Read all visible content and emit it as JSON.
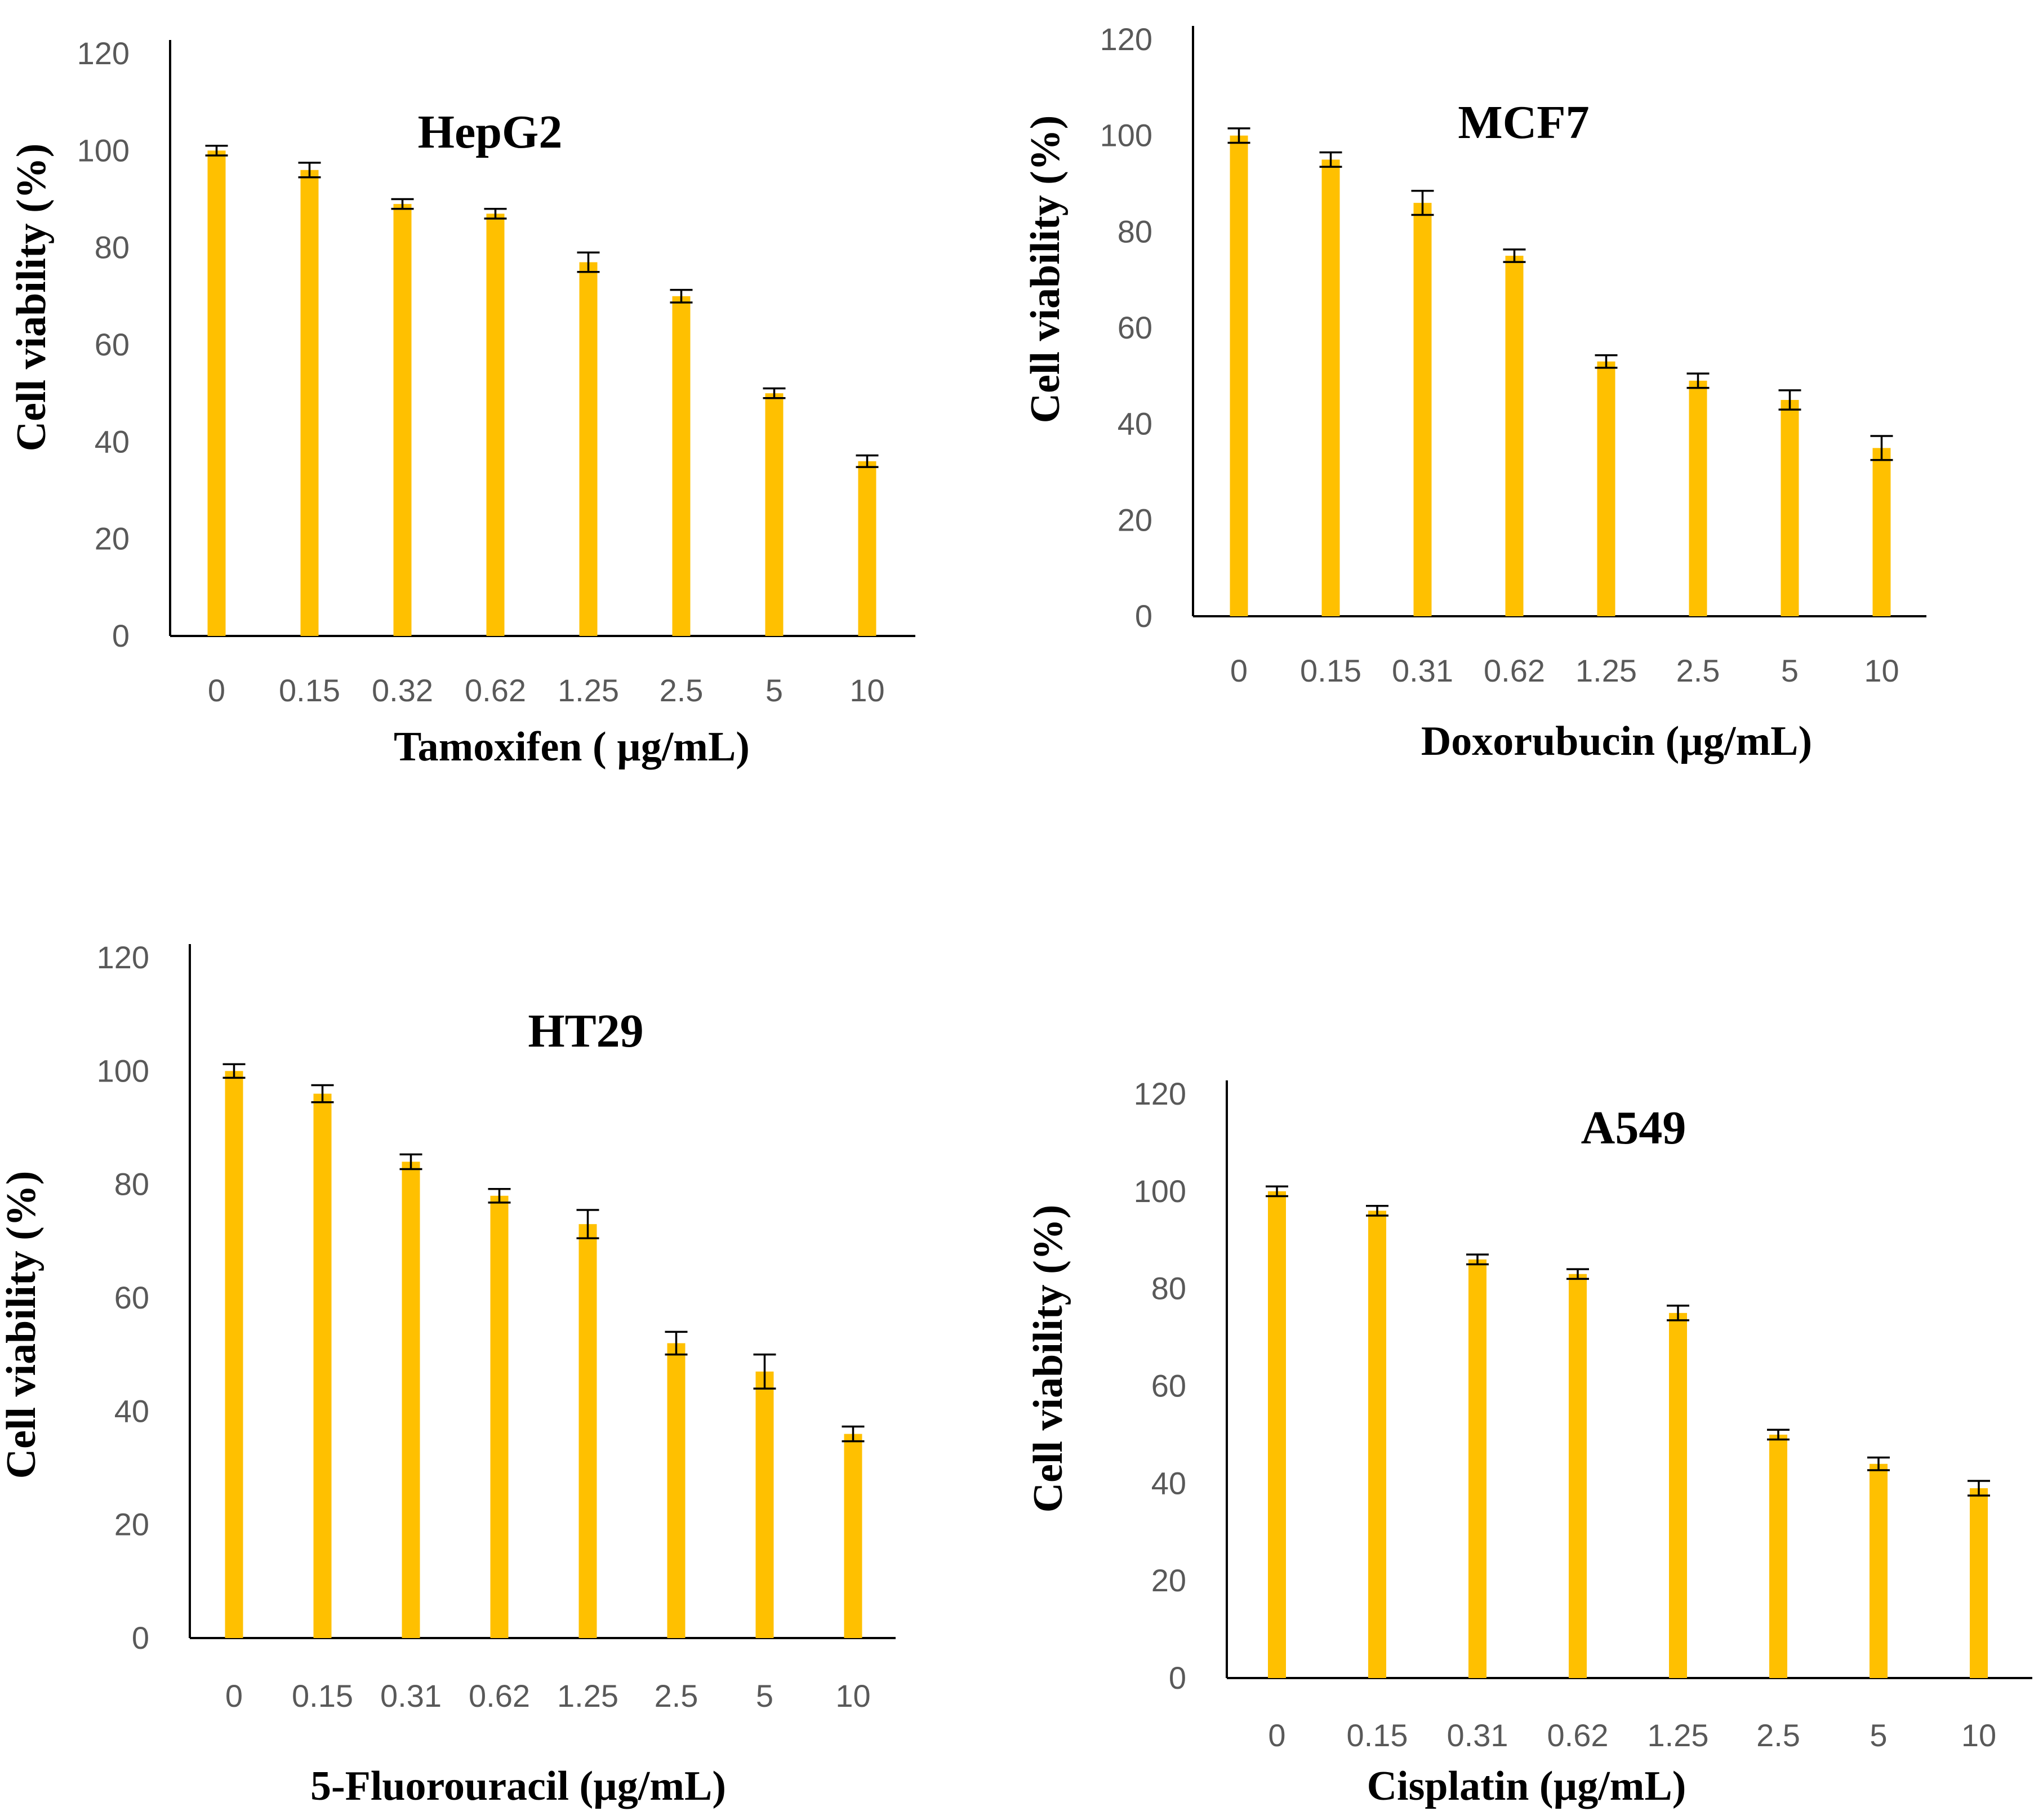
{
  "colors": {
    "bar": "#FFC000",
    "axis": "#000000",
    "tick_text": "#595959",
    "error_bar": "#000000"
  },
  "chart_data": [
    {
      "type": "bar",
      "title": "HepG2",
      "xlabel": "Tamoxifen ( µg/mL)",
      "ylabel": "Cell viability (%)",
      "ylim": [
        0,
        120
      ],
      "yticks": [
        "0",
        "20",
        "40",
        "60",
        "80",
        "100",
        "120"
      ],
      "categories": [
        "0",
        "0.15",
        "0.32",
        "0.62",
        "1.25",
        "2.5",
        "5",
        "10"
      ],
      "values": [
        100,
        96,
        89,
        87,
        77,
        70,
        50,
        36
      ],
      "errors": [
        1,
        1.5,
        1,
        1,
        2,
        1.3,
        1,
        1.2
      ]
    },
    {
      "type": "bar",
      "title": "MCF7",
      "xlabel": "Doxorubucin (µg/mL)",
      "ylabel": "Cell viability (%)",
      "ylim": [
        0,
        120
      ],
      "yticks": [
        "0",
        "20",
        "40",
        "60",
        "80",
        "100",
        "120"
      ],
      "categories": [
        "0",
        "0.15",
        "0.31",
        "0.62",
        "1.25",
        "2.5",
        "5",
        "10"
      ],
      "values": [
        100,
        95,
        86,
        75,
        53,
        49,
        45,
        35
      ],
      "errors": [
        1.5,
        1.5,
        2.5,
        1.3,
        1.3,
        1.5,
        2,
        2.5
      ]
    },
    {
      "type": "bar",
      "title": "HT29",
      "xlabel": "5-Fluorouracil (µg/mL)",
      "ylabel": "Cell viability (%)",
      "ylim": [
        0,
        120
      ],
      "yticks": [
        "0",
        "20",
        "40",
        "60",
        "80",
        "100",
        "120"
      ],
      "categories": [
        "0",
        "0.15",
        "0.31",
        "0.62",
        "1.25",
        "2.5",
        "5",
        "10"
      ],
      "values": [
        100,
        96,
        84,
        78,
        73,
        52,
        47,
        36
      ],
      "errors": [
        1.2,
        1.5,
        1.3,
        1.2,
        2.5,
        2,
        3,
        1.3
      ]
    },
    {
      "type": "bar",
      "title": "A549",
      "xlabel": "Cisplatin (µg/mL)",
      "ylabel": "Cell viability (%)",
      "ylim": [
        0,
        120
      ],
      "yticks": [
        "0",
        "20",
        "40",
        "60",
        "80",
        "100",
        "120"
      ],
      "categories": [
        "0",
        "0.15",
        "0.31",
        "0.62",
        "1.25",
        "2.5",
        "5",
        "10"
      ],
      "values": [
        100,
        96,
        86,
        83,
        75,
        50,
        44,
        39
      ],
      "errors": [
        1,
        1,
        1,
        1,
        1.5,
        1,
        1.3,
        1.5
      ]
    }
  ]
}
